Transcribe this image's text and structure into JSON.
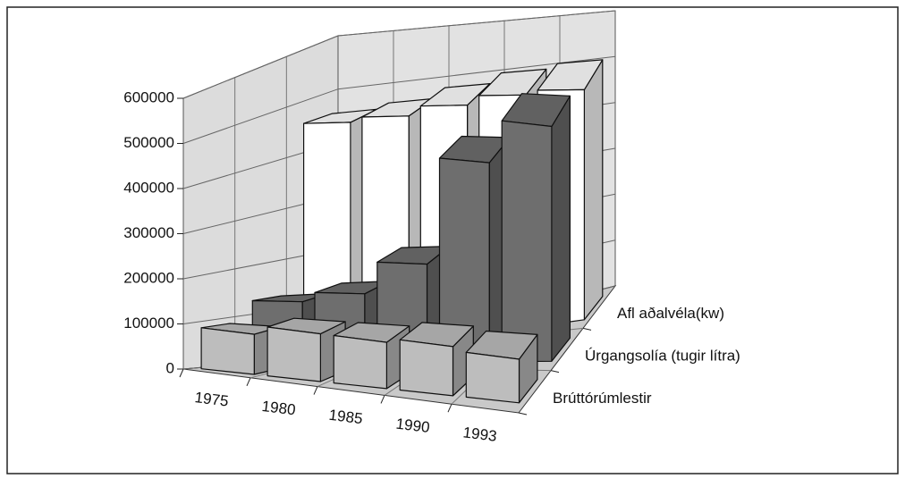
{
  "chart_data": {
    "type": "bar3d",
    "categories": [
      "1975",
      "1980",
      "1985",
      "1990",
      "1993"
    ],
    "series": [
      {
        "name": "Brúttórúmlestir",
        "color": "#bdbdbd",
        "values": [
          90000,
          110000,
          110000,
          120000,
          110000
        ]
      },
      {
        "name": "Úrgangsolía (tugir lítra)",
        "color": "#6e6e6e",
        "values": [
          130000,
          150000,
          220000,
          460000,
          560000
        ]
      },
      {
        "name": "Afl aðalvéla(kw)",
        "color": "#ffffff",
        "values": [
          460000,
          470000,
          490000,
          510000,
          520000
        ]
      }
    ],
    "ylim": [
      0,
      600000
    ],
    "yticks": [
      0,
      100000,
      200000,
      300000,
      400000,
      500000,
      600000
    ],
    "grid": true
  }
}
